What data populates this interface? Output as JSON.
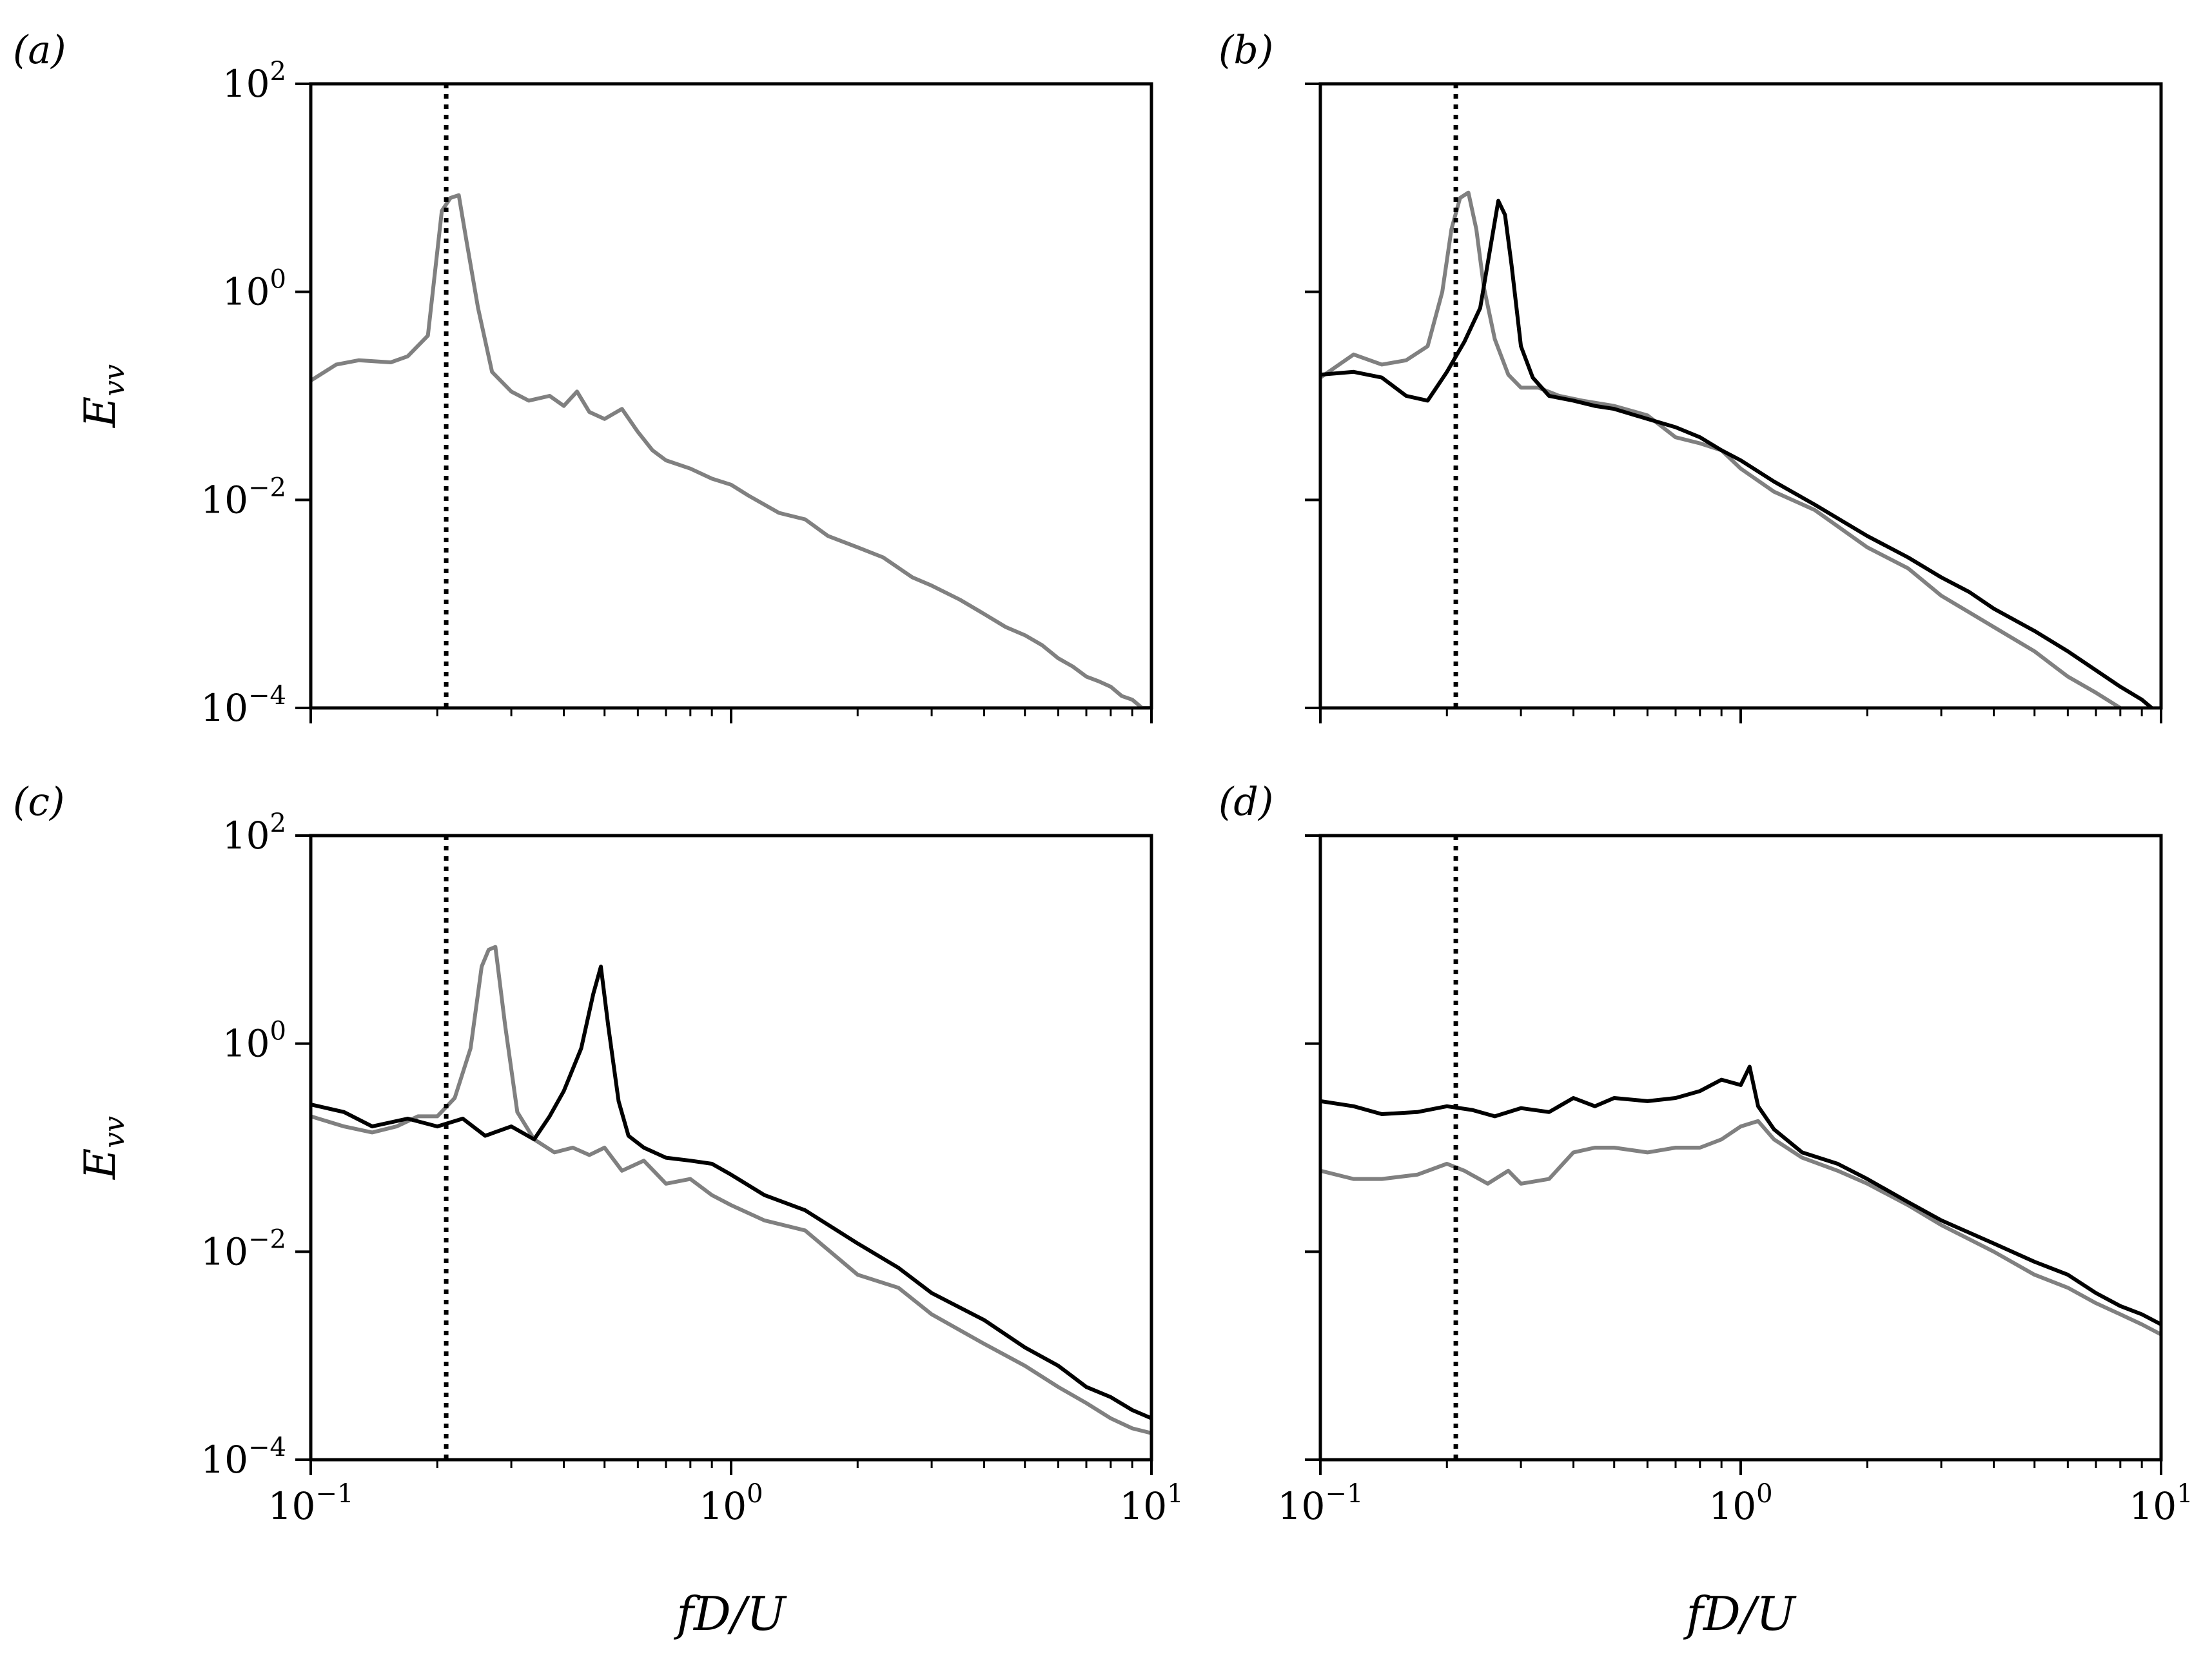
{
  "figure": {
    "reference_line_x": 0.21,
    "colors": {
      "black_series": "#000000",
      "gray_series": "#808080",
      "axes": "#000000"
    }
  },
  "chart_data": [
    {
      "panel": "(a)",
      "type": "line",
      "xscale": "log",
      "yscale": "log",
      "xlim": [
        0.1,
        10
      ],
      "ylim": [
        0.0001,
        100
      ],
      "x_ticks": [
        "10−1",
        "100",
        "101"
      ],
      "y_ticks": [
        "10−4",
        "10−2",
        "100",
        "102"
      ],
      "xlabel": "",
      "ylabel": "Evv",
      "vline": 0.21,
      "series": [
        {
          "name": "gray",
          "color": "#808080",
          "x": [
            0.1,
            0.115,
            0.13,
            0.155,
            0.17,
            0.19,
            0.205,
            0.215,
            0.225,
            0.235,
            0.25,
            0.27,
            0.3,
            0.33,
            0.37,
            0.4,
            0.43,
            0.46,
            0.5,
            0.55,
            0.6,
            0.65,
            0.7,
            0.8,
            0.9,
            1.0,
            1.1,
            1.3,
            1.5,
            1.7,
            2.0,
            2.3,
            2.7,
            3.0,
            3.5,
            4.0,
            4.5,
            5.0,
            5.5,
            6.0,
            6.5,
            7.0,
            7.5,
            8.0,
            8.5,
            9.0,
            9.5,
            10.0
          ],
          "y": [
            0.14,
            0.2,
            0.22,
            0.21,
            0.24,
            0.38,
            6.0,
            8.0,
            8.5,
            3.0,
            0.7,
            0.17,
            0.11,
            0.09,
            0.1,
            0.08,
            0.11,
            0.07,
            0.06,
            0.075,
            0.045,
            0.03,
            0.024,
            0.02,
            0.016,
            0.014,
            0.011,
            0.0075,
            0.0065,
            0.0045,
            0.0035,
            0.0028,
            0.0018,
            0.0015,
            0.0011,
            0.0008,
            0.0006,
            0.0005,
            0.0004,
            0.0003,
            0.00025,
            0.0002,
            0.00018,
            0.00016,
            0.00013,
            0.00012,
            0.0001,
            0.0001
          ]
        }
      ]
    },
    {
      "panel": "(b)",
      "type": "line",
      "xscale": "log",
      "yscale": "log",
      "xlim": [
        0.1,
        10
      ],
      "ylim": [
        0.0001,
        100
      ],
      "x_ticks": [
        "10−1",
        "100",
        "101"
      ],
      "y_ticks": [],
      "xlabel": "",
      "ylabel": "",
      "vline": 0.21,
      "series": [
        {
          "name": "black",
          "color": "#000000",
          "x": [
            0.1,
            0.12,
            0.14,
            0.16,
            0.18,
            0.2,
            0.22,
            0.24,
            0.255,
            0.265,
            0.275,
            0.285,
            0.3,
            0.32,
            0.35,
            0.4,
            0.45,
            0.5,
            0.6,
            0.7,
            0.8,
            0.9,
            1.0,
            1.2,
            1.5,
            2.0,
            2.5,
            3.0,
            3.5,
            4.0,
            5.0,
            6.0,
            7.0,
            8.0,
            9.0,
            9.5
          ],
          "y": [
            0.16,
            0.17,
            0.15,
            0.1,
            0.09,
            0.17,
            0.33,
            0.7,
            3.0,
            7.5,
            5.5,
            1.8,
            0.3,
            0.15,
            0.1,
            0.09,
            0.08,
            0.075,
            0.06,
            0.05,
            0.04,
            0.03,
            0.024,
            0.015,
            0.009,
            0.0045,
            0.0028,
            0.0018,
            0.0013,
            0.0009,
            0.00055,
            0.00035,
            0.00023,
            0.00016,
            0.00012,
            0.0001
          ]
        },
        {
          "name": "gray",
          "color": "#808080",
          "x": [
            0.1,
            0.12,
            0.14,
            0.16,
            0.18,
            0.195,
            0.205,
            0.215,
            0.225,
            0.235,
            0.245,
            0.26,
            0.28,
            0.3,
            0.33,
            0.37,
            0.42,
            0.5,
            0.6,
            0.7,
            0.8,
            0.9,
            1.0,
            1.2,
            1.5,
            2.0,
            2.5,
            3.0,
            4.0,
            5.0,
            6.0,
            7.0,
            8.0
          ],
          "y": [
            0.15,
            0.25,
            0.2,
            0.22,
            0.3,
            1.0,
            4.0,
            8.0,
            9.0,
            4.0,
            1.1,
            0.35,
            0.16,
            0.12,
            0.12,
            0.1,
            0.09,
            0.08,
            0.065,
            0.04,
            0.035,
            0.03,
            0.02,
            0.012,
            0.008,
            0.0035,
            0.0022,
            0.0012,
            0.0006,
            0.00035,
            0.0002,
            0.00014,
            0.0001
          ]
        }
      ]
    },
    {
      "panel": "(c)",
      "type": "line",
      "xscale": "log",
      "yscale": "log",
      "xlim": [
        0.1,
        10
      ],
      "ylim": [
        0.0001,
        100
      ],
      "x_ticks": [
        "10−1",
        "100",
        "101"
      ],
      "y_ticks": [
        "10−4",
        "10−2",
        "100",
        "102"
      ],
      "xlabel": "fD/U",
      "ylabel": "Evv",
      "vline": 0.21,
      "series": [
        {
          "name": "black",
          "color": "#000000",
          "x": [
            0.1,
            0.12,
            0.14,
            0.17,
            0.2,
            0.23,
            0.26,
            0.3,
            0.34,
            0.37,
            0.4,
            0.44,
            0.47,
            0.49,
            0.51,
            0.54,
            0.57,
            0.62,
            0.7,
            0.8,
            0.9,
            1.0,
            1.2,
            1.5,
            2.0,
            2.5,
            3.0,
            4.0,
            5.0,
            6.0,
            7.0,
            8.0,
            9.0,
            10.0
          ],
          "y": [
            0.26,
            0.22,
            0.16,
            0.19,
            0.16,
            0.19,
            0.13,
            0.16,
            0.12,
            0.2,
            0.35,
            0.9,
            3.0,
            5.5,
            1.5,
            0.28,
            0.13,
            0.1,
            0.08,
            0.075,
            0.07,
            0.055,
            0.035,
            0.025,
            0.012,
            0.007,
            0.004,
            0.0022,
            0.0012,
            0.0008,
            0.0005,
            0.0004,
            0.0003,
            0.00025
          ]
        },
        {
          "name": "gray",
          "color": "#808080",
          "x": [
            0.1,
            0.12,
            0.14,
            0.16,
            0.18,
            0.2,
            0.22,
            0.24,
            0.255,
            0.265,
            0.275,
            0.29,
            0.31,
            0.34,
            0.38,
            0.42,
            0.46,
            0.5,
            0.55,
            0.62,
            0.7,
            0.8,
            0.9,
            1.0,
            1.2,
            1.5,
            2.0,
            2.5,
            3.0,
            4.0,
            5.0,
            6.0,
            7.0,
            8.0,
            9.0,
            10.0
          ],
          "y": [
            0.2,
            0.16,
            0.14,
            0.16,
            0.2,
            0.2,
            0.3,
            0.9,
            5.5,
            8.0,
            8.5,
            1.5,
            0.22,
            0.12,
            0.09,
            0.1,
            0.085,
            0.1,
            0.06,
            0.075,
            0.045,
            0.05,
            0.035,
            0.028,
            0.02,
            0.016,
            0.006,
            0.0045,
            0.0025,
            0.0013,
            0.0008,
            0.0005,
            0.00035,
            0.00025,
            0.0002,
            0.00018
          ]
        }
      ]
    },
    {
      "panel": "(d)",
      "type": "line",
      "xscale": "log",
      "yscale": "log",
      "xlim": [
        0.1,
        10
      ],
      "ylim": [
        0.0001,
        100
      ],
      "x_ticks": [
        "10−1",
        "100",
        "101"
      ],
      "y_ticks": [],
      "xlabel": "fD/U",
      "ylabel": "",
      "vline": 0.21,
      "series": [
        {
          "name": "black",
          "color": "#000000",
          "x": [
            0.1,
            0.12,
            0.14,
            0.17,
            0.2,
            0.23,
            0.26,
            0.3,
            0.35,
            0.4,
            0.45,
            0.5,
            0.6,
            0.7,
            0.8,
            0.9,
            1.0,
            1.05,
            1.1,
            1.2,
            1.4,
            1.7,
            2.0,
            2.5,
            3.0,
            4.0,
            5.0,
            6.0,
            7.0,
            8.0,
            9.0,
            10.0
          ],
          "y": [
            0.28,
            0.25,
            0.21,
            0.22,
            0.25,
            0.23,
            0.2,
            0.24,
            0.22,
            0.3,
            0.25,
            0.3,
            0.28,
            0.3,
            0.35,
            0.45,
            0.4,
            0.6,
            0.25,
            0.15,
            0.09,
            0.07,
            0.05,
            0.03,
            0.02,
            0.012,
            0.008,
            0.006,
            0.004,
            0.003,
            0.0025,
            0.002
          ]
        },
        {
          "name": "gray",
          "color": "#808080",
          "x": [
            0.1,
            0.12,
            0.14,
            0.17,
            0.2,
            0.22,
            0.25,
            0.28,
            0.3,
            0.35,
            0.4,
            0.45,
            0.5,
            0.6,
            0.7,
            0.8,
            0.9,
            1.0,
            1.1,
            1.2,
            1.4,
            1.7,
            2.0,
            2.5,
            3.0,
            4.0,
            5.0,
            6.0,
            7.0,
            8.0,
            9.0,
            10.0
          ],
          "y": [
            0.06,
            0.05,
            0.05,
            0.055,
            0.07,
            0.06,
            0.045,
            0.06,
            0.045,
            0.05,
            0.09,
            0.1,
            0.1,
            0.09,
            0.1,
            0.1,
            0.12,
            0.16,
            0.18,
            0.12,
            0.08,
            0.06,
            0.045,
            0.028,
            0.018,
            0.01,
            0.006,
            0.0045,
            0.0032,
            0.0025,
            0.002,
            0.0016
          ]
        }
      ]
    }
  ]
}
